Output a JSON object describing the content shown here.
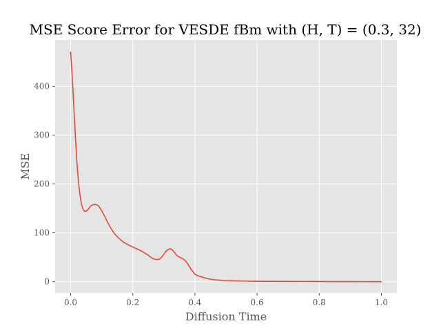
{
  "chart_data": {
    "type": "line",
    "title": "MSE Score Error for VESDE fBm with (H, T) = (0.3, 32)",
    "xlabel": "Diffusion Time",
    "ylabel": "MSE",
    "xlim": [
      -0.05,
      1.05
    ],
    "ylim": [
      -23,
      495
    ],
    "xticks": [
      0.0,
      0.2,
      0.4,
      0.6,
      0.8,
      1.0
    ],
    "xtick_labels": [
      "0.0",
      "0.2",
      "0.4",
      "0.6",
      "0.8",
      "1.0"
    ],
    "yticks": [
      0,
      100,
      200,
      300,
      400
    ],
    "ytick_labels": [
      "0",
      "100",
      "200",
      "300",
      "400"
    ],
    "grid": true,
    "background": "#e5e5e5",
    "grid_color": "#ffffff",
    "series": [
      {
        "name": "MSE",
        "color": "#e24a33",
        "x": [
          0.0,
          0.005,
          0.01,
          0.015,
          0.02,
          0.025,
          0.03,
          0.035,
          0.04,
          0.045,
          0.05,
          0.055,
          0.06,
          0.065,
          0.07,
          0.075,
          0.08,
          0.085,
          0.09,
          0.095,
          0.1,
          0.11,
          0.12,
          0.13,
          0.14,
          0.15,
          0.16,
          0.17,
          0.18,
          0.19,
          0.2,
          0.21,
          0.22,
          0.23,
          0.24,
          0.25,
          0.26,
          0.27,
          0.28,
          0.285,
          0.29,
          0.295,
          0.3,
          0.305,
          0.31,
          0.315,
          0.32,
          0.325,
          0.33,
          0.335,
          0.34,
          0.345,
          0.35,
          0.355,
          0.36,
          0.365,
          0.37,
          0.375,
          0.38,
          0.385,
          0.39,
          0.395,
          0.4,
          0.41,
          0.42,
          0.43,
          0.44,
          0.45,
          0.46,
          0.47,
          0.48,
          0.49,
          0.5,
          0.52,
          0.54,
          0.56,
          0.58,
          0.6,
          0.65,
          0.7,
          0.75,
          0.8,
          0.85,
          0.9,
          0.95,
          1.0
        ],
        "y": [
          470,
          420,
          360,
          300,
          245,
          205,
          177,
          158,
          148,
          144,
          144,
          147,
          151,
          155,
          157,
          158,
          158,
          157,
          155,
          150,
          145,
          133,
          120,
          109,
          99,
          92,
          86,
          81,
          77,
          74,
          71,
          68,
          65,
          62,
          58,
          54,
          49,
          46,
          45,
          46,
          48,
          52,
          56,
          61,
          64,
          66,
          67,
          66,
          63,
          59,
          55,
          52,
          50,
          49,
          47,
          45,
          42,
          38,
          33,
          28,
          23,
          19,
          15,
          12,
          10,
          8,
          6.5,
          5,
          4,
          3.5,
          3,
          2.5,
          2,
          1.7,
          1.4,
          1.1,
          0.9,
          0.8,
          0.6,
          0.5,
          0.4,
          0.3,
          0.2,
          0.1,
          0.05,
          0.0
        ]
      }
    ]
  }
}
